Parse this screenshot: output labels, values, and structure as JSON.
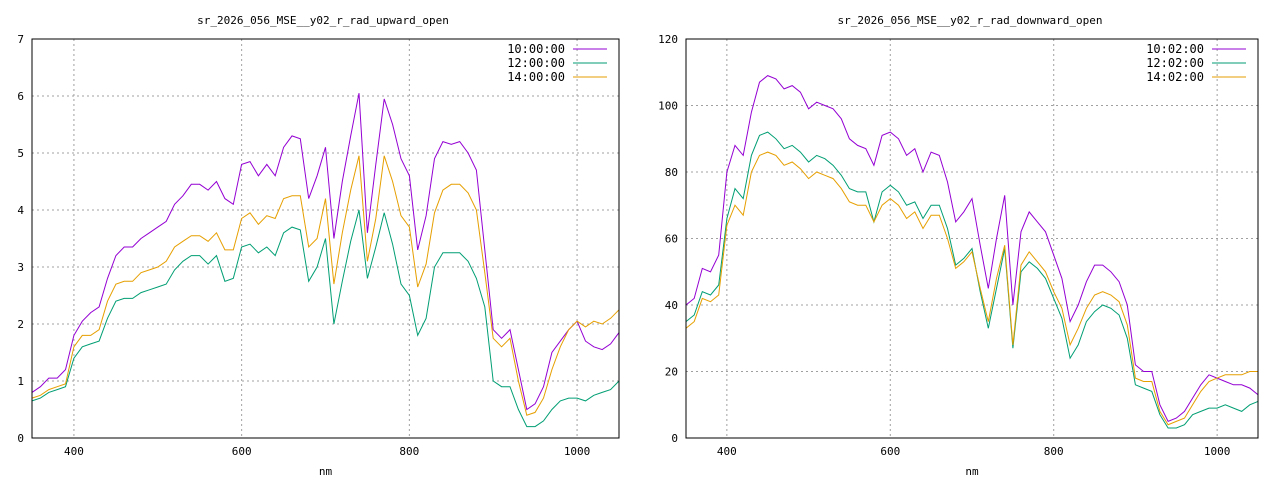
{
  "colors": {
    "series1": "#9400d3",
    "series2": "#009e73",
    "series3": "#e69f00"
  },
  "chart_data": [
    {
      "type": "line",
      "title": "sr_2026_056_MSE__y02_r_rad_upward_open",
      "xlabel": "nm",
      "ylabel": "",
      "xlim": [
        350,
        1050
      ],
      "ylim": [
        0,
        7
      ],
      "xticks": [
        400,
        600,
        800,
        1000
      ],
      "yticks": [
        0,
        1,
        2,
        3,
        4,
        5,
        6,
        7
      ],
      "grid": true,
      "legend": "top-right",
      "x": [
        350,
        360,
        370,
        380,
        390,
        400,
        410,
        420,
        430,
        440,
        450,
        460,
        470,
        480,
        490,
        500,
        510,
        520,
        530,
        540,
        550,
        560,
        570,
        580,
        590,
        600,
        610,
        620,
        630,
        640,
        650,
        660,
        670,
        680,
        690,
        700,
        710,
        720,
        730,
        740,
        750,
        760,
        770,
        780,
        790,
        800,
        810,
        820,
        830,
        840,
        850,
        860,
        870,
        880,
        890,
        900,
        910,
        920,
        930,
        940,
        950,
        960,
        970,
        980,
        990,
        1000,
        1010,
        1020,
        1030,
        1040,
        1050
      ],
      "series": [
        {
          "name": "10:00:00",
          "color_key": "series1",
          "values": [
            0.8,
            0.9,
            1.05,
            1.05,
            1.2,
            1.8,
            2.05,
            2.2,
            2.3,
            2.8,
            3.2,
            3.35,
            3.35,
            3.5,
            3.6,
            3.7,
            3.8,
            4.1,
            4.25,
            4.45,
            4.45,
            4.35,
            4.5,
            4.2,
            4.1,
            4.8,
            4.85,
            4.6,
            4.8,
            4.6,
            5.1,
            5.3,
            5.25,
            4.2,
            4.6,
            5.1,
            3.5,
            4.5,
            5.3,
            6.05,
            3.6,
            4.8,
            5.95,
            5.5,
            4.9,
            4.6,
            3.3,
            3.9,
            4.9,
            5.2,
            5.15,
            5.2,
            5.0,
            4.7,
            3.3,
            1.9,
            1.75,
            1.9,
            1.2,
            0.5,
            0.6,
            0.9,
            1.5,
            1.7,
            1.9,
            2.05,
            1.7,
            1.6,
            1.55,
            1.65,
            1.85
          ]
        },
        {
          "name": "12:00:00",
          "color_key": "series2",
          "values": [
            0.65,
            0.7,
            0.8,
            0.85,
            0.9,
            1.4,
            1.6,
            1.65,
            1.7,
            2.1,
            2.4,
            2.45,
            2.45,
            2.55,
            2.6,
            2.65,
            2.7,
            2.95,
            3.1,
            3.2,
            3.2,
            3.05,
            3.2,
            2.75,
            2.8,
            3.35,
            3.4,
            3.25,
            3.35,
            3.2,
            3.6,
            3.7,
            3.65,
            2.75,
            3.0,
            3.5,
            2.0,
            2.75,
            3.45,
            4.0,
            2.8,
            3.35,
            3.95,
            3.4,
            2.7,
            2.5,
            1.8,
            2.1,
            3.0,
            3.25,
            3.25,
            3.25,
            3.1,
            2.8,
            2.3,
            1.0,
            0.9,
            0.9,
            0.5,
            0.2,
            0.2,
            0.3,
            0.5,
            0.65,
            0.7,
            0.7,
            0.65,
            0.75,
            0.8,
            0.85,
            1.0
          ]
        },
        {
          "name": "14:00:00",
          "color_key": "series3",
          "values": [
            0.7,
            0.75,
            0.85,
            0.9,
            0.95,
            1.6,
            1.8,
            1.8,
            1.9,
            2.4,
            2.7,
            2.75,
            2.75,
            2.9,
            2.95,
            3.0,
            3.1,
            3.35,
            3.45,
            3.55,
            3.55,
            3.45,
            3.6,
            3.3,
            3.3,
            3.85,
            3.95,
            3.75,
            3.9,
            3.85,
            4.2,
            4.25,
            4.25,
            3.35,
            3.5,
            4.2,
            2.7,
            3.6,
            4.35,
            4.95,
            3.1,
            3.85,
            4.95,
            4.5,
            3.9,
            3.7,
            2.65,
            3.05,
            3.95,
            4.35,
            4.45,
            4.45,
            4.3,
            4.0,
            2.9,
            1.75,
            1.6,
            1.75,
            1.0,
            0.4,
            0.45,
            0.7,
            1.2,
            1.6,
            1.9,
            2.05,
            1.95,
            2.05,
            2.0,
            2.1,
            2.25
          ]
        }
      ]
    },
    {
      "type": "line",
      "title": "sr_2026_056_MSE__y02_r_rad_downward_open",
      "xlabel": "nm",
      "ylabel": "",
      "xlim": [
        350,
        1050
      ],
      "ylim": [
        0,
        120
      ],
      "xticks": [
        400,
        600,
        800,
        1000
      ],
      "yticks": [
        0,
        20,
        40,
        60,
        80,
        100,
        120
      ],
      "grid": true,
      "legend": "top-right",
      "x": [
        350,
        360,
        370,
        380,
        390,
        400,
        410,
        420,
        430,
        440,
        450,
        460,
        470,
        480,
        490,
        500,
        510,
        520,
        530,
        540,
        550,
        560,
        570,
        580,
        590,
        600,
        610,
        620,
        630,
        640,
        650,
        660,
        670,
        680,
        690,
        700,
        710,
        720,
        730,
        740,
        750,
        760,
        770,
        780,
        790,
        800,
        810,
        820,
        830,
        840,
        850,
        860,
        870,
        880,
        890,
        900,
        910,
        920,
        930,
        940,
        950,
        960,
        970,
        980,
        990,
        1000,
        1010,
        1020,
        1030,
        1040,
        1050
      ],
      "series": [
        {
          "name": "10:02:00",
          "color_key": "series1",
          "values": [
            40,
            42,
            51,
            50,
            55,
            80,
            88,
            85,
            98,
            107,
            109,
            108,
            105,
            106,
            104,
            99,
            101,
            100,
            99,
            96,
            90,
            88,
            87,
            82,
            91,
            92,
            90,
            85,
            87,
            80,
            86,
            85,
            77,
            65,
            68,
            72,
            58,
            45,
            60,
            73,
            40,
            62,
            68,
            65,
            62,
            55,
            48,
            35,
            40,
            47,
            52,
            52,
            50,
            47,
            40,
            22,
            20,
            20,
            10,
            5,
            6,
            8,
            12,
            16,
            19,
            18,
            17,
            16,
            16,
            15,
            13
          ]
        },
        {
          "name": "12:02:00",
          "color_key": "series2",
          "values": [
            35,
            37,
            44,
            43,
            46,
            66,
            75,
            72,
            85,
            91,
            92,
            90,
            87,
            88,
            86,
            83,
            85,
            84,
            82,
            79,
            75,
            74,
            74,
            65,
            74,
            76,
            74,
            70,
            71,
            66,
            70,
            70,
            63,
            52,
            54,
            57,
            44,
            33,
            45,
            57,
            27,
            50,
            53,
            51,
            48,
            42,
            36,
            24,
            28,
            35,
            38,
            40,
            39,
            37,
            30,
            16,
            15,
            14,
            7,
            3,
            3,
            4,
            7,
            8,
            9,
            9,
            10,
            9,
            8,
            10,
            11
          ]
        },
        {
          "name": "14:02:00",
          "color_key": "series3",
          "values": [
            33,
            35,
            42,
            41,
            43,
            64,
            70,
            67,
            80,
            85,
            86,
            85,
            82,
            83,
            81,
            78,
            80,
            79,
            78,
            75,
            71,
            70,
            70,
            65,
            70,
            72,
            70,
            66,
            68,
            63,
            67,
            67,
            60,
            51,
            53,
            56,
            45,
            35,
            48,
            58,
            28,
            52,
            56,
            53,
            50,
            44,
            39,
            28,
            33,
            39,
            43,
            44,
            43,
            41,
            34,
            18,
            17,
            17,
            8,
            4,
            5,
            6,
            10,
            14,
            17,
            18,
            19,
            19,
            19,
            20,
            20
          ]
        }
      ]
    }
  ]
}
